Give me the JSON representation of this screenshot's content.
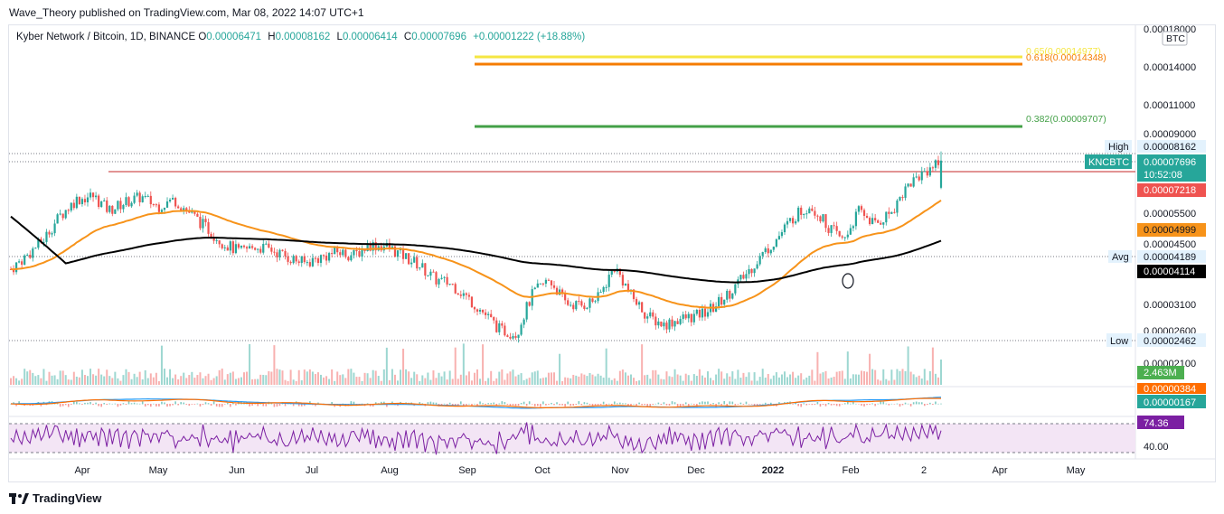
{
  "publisher": "Wave_Theory published on TradingView.com, Mar 08, 2022 14:07 UTC+1",
  "header": {
    "symbol": "Kyber Network / Bitcoin, 1D, BINANCE",
    "o_label": "O",
    "o": "0.00006471",
    "h_label": "H",
    "h": "0.00008162",
    "l_label": "L",
    "l": "0.00006414",
    "c_label": "C",
    "c": "0.00007696",
    "change": "+0.00001222 (+18.88%)"
  },
  "footer": {
    "brand": "TradingView"
  },
  "colors": {
    "up": "#26a69a",
    "down": "#ef5350",
    "ema_orange": "#f7931a",
    "ema_black": "#000000",
    "fib_65": "#f5e642",
    "fib_618": "#f57c00",
    "fib_382": "#43a047",
    "rsi_fill": "#f3e5f5",
    "rsi_line": "#7b1fa2",
    "macd_blue": "#2196f3",
    "macd_orange": "#ff6d00"
  },
  "chart_data": {
    "type": "candlestick",
    "symbol": "KNCBTC",
    "timeframe": "1D",
    "exchange": "BINANCE",
    "ohlc_last": {
      "open": 6.471e-05,
      "high": 8.162e-05,
      "low": 6.414e-05,
      "close": 7.696e-05,
      "change": 1.222e-05,
      "change_pct": 18.88
    },
    "x_ticks": [
      "Apr",
      "May",
      "Jun",
      "Jul",
      "Aug",
      "Sep",
      "Oct",
      "Nov",
      "Dec",
      "2022",
      "Feb",
      "2",
      "Apr",
      "May"
    ],
    "y_ticks": [
      "0.00018000",
      "0.00014000",
      "0.00011000",
      "0.00009000",
      "0.00005500",
      "0.00004500",
      "0.00003100",
      "0.00002600",
      "0.00002100"
    ],
    "y_unit": "BTC",
    "close_series": [
      3.85e-05,
      4.2e-05,
      4.65e-05,
      5.4e-05,
      6e-05,
      6.15e-05,
      5.6e-05,
      5.9e-05,
      6.1e-05,
      5.75e-05,
      6e-05,
      5.5e-05,
      5e-05,
      4.55e-05,
      4.3e-05,
      4.45e-05,
      4.35e-05,
      4.15e-05,
      4e-05,
      4.15e-05,
      4.3e-05,
      4.2e-05,
      4.5e-05,
      4.45e-05,
      4.2e-05,
      3.95e-05,
      3.6e-05,
      3.5e-05,
      3.2e-05,
      2.9e-05,
      2.6e-05,
      2.55e-05,
      3.3e-05,
      3.6e-05,
      3.1e-05,
      3.05e-05,
      3.2e-05,
      3.9e-05,
      3.25e-05,
      2.85e-05,
      2.7e-05,
      2.8e-05,
      2.85e-05,
      3e-05,
      3.3e-05,
      3.7e-05,
      4.2e-05,
      4.7e-05,
      5.4e-05,
      5.8e-05,
      5.1e-05,
      4.6e-05,
      5.6e-05,
      5.1e-05,
      5.6e-05,
      6.6e-05,
      7.2e-05,
      7.7e-05
    ],
    "ema_short_last": 4.999e-05,
    "ema_long_last": 4.114e-05,
    "price_labels": [
      {
        "label": "High",
        "value": "0.00008162"
      },
      {
        "label": "KNCBTC",
        "value": "0.00007696",
        "countdown": "10:52:08"
      },
      {
        "label": "",
        "value": "0.00007218"
      },
      {
        "label": "",
        "value": "0.00004999"
      },
      {
        "label": "Avg",
        "value": "0.00004189"
      },
      {
        "label": "",
        "value": "0.00004114"
      },
      {
        "label": "Low",
        "value": "0.00002462"
      }
    ],
    "fib_levels": [
      {
        "label": "0.65(0.00014977)",
        "value": 0.00014977
      },
      {
        "label": "0.618(0.00014348)",
        "value": 0.00014348
      },
      {
        "label": "0.382(0.00009707)",
        "value": 9.707e-05
      }
    ],
    "resistance_level": 7.218e-05,
    "volume": {
      "last": "2.463M"
    },
    "macd": {
      "histogram_value": "0.00000384",
      "value": "0.00000167"
    },
    "rsi": {
      "last": "74.36",
      "ticks": [
        "40.00"
      ]
    }
  }
}
